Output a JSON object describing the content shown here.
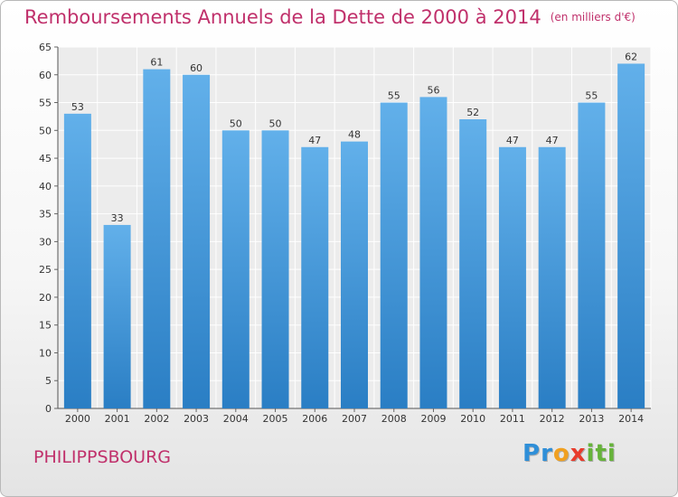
{
  "header": {
    "title": "Remboursements Annuels de la Dette de 2000 à 2014",
    "unit": "(en milliers d'€)"
  },
  "footer": {
    "city": "PHILIPPSBOURG",
    "logo_letters": [
      "P",
      "r",
      "o",
      "x",
      "i",
      "t",
      "i"
    ],
    "logo_colors": [
      "#2f8fd8",
      "#2f8fd8",
      "#f0a020",
      "#e83c2c",
      "#66b33a",
      "#66b33a",
      "#66b33a"
    ]
  },
  "chart_data": {
    "type": "bar",
    "title": "Remboursements Annuels de la Dette de 2000 à 2014",
    "xlabel": "",
    "ylabel": "",
    "categories": [
      "2000",
      "2001",
      "2002",
      "2003",
      "2004",
      "2005",
      "2006",
      "2007",
      "2008",
      "2009",
      "2010",
      "2011",
      "2012",
      "2013",
      "2014"
    ],
    "values": [
      53,
      33,
      61,
      60,
      50,
      50,
      47,
      48,
      55,
      56,
      52,
      47,
      47,
      55,
      62
    ],
    "ylim": [
      0,
      65
    ],
    "yticks": [
      0,
      5,
      10,
      15,
      20,
      25,
      30,
      35,
      40,
      45,
      50,
      55,
      60,
      65
    ],
    "grid": true,
    "bar_color_top": "#62b0ea",
    "bar_color_bottom": "#2a7ec4"
  }
}
